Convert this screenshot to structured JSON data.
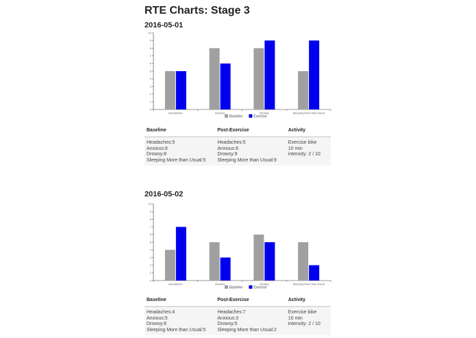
{
  "page": {
    "title": "RTE Charts: Stage 3"
  },
  "legend": {
    "baseline_label": "Baseline",
    "exercise_label": "Exercise",
    "baseline_color": "#a0a0a0",
    "exercise_color": "#0000ee"
  },
  "table_headers": {
    "baseline": "Baseline",
    "post_exercise": "Post-Exercise",
    "activity": "Activity"
  },
  "sections": [
    {
      "date": "2016-05-01",
      "baseline_lines": [
        "Headaches:5",
        "Anxious:8",
        "Drowsy:8",
        "Sleeping More than Usual:5"
      ],
      "post_lines": [
        "Headaches:5",
        "Anxious:6",
        "Drowsy:9",
        "Sleeping More than Usual:9"
      ],
      "activity_lines": [
        "Exercise bike",
        "10 min",
        "intensity: 2 / 10"
      ]
    },
    {
      "date": "2016-05-02",
      "baseline_lines": [
        "Headaches:4",
        "Anxious:5",
        "Drowsy:6",
        "Sleeping More than Usual:5"
      ],
      "post_lines": [
        "Headaches:7",
        "Anxious:3",
        "Drowsy:5",
        "Sleeping More than Usual:2"
      ],
      "activity_lines": [
        "Exercise bike",
        "10 min",
        "intensity: 2 / 10"
      ]
    }
  ],
  "chart_data": [
    {
      "type": "bar",
      "title": "2016-05-01",
      "categories": [
        "Headaches",
        "Anxious",
        "Drowsy",
        "Sleeping More than Usual"
      ],
      "series": [
        {
          "name": "Baseline",
          "color": "#a0a0a0",
          "values": [
            5,
            8,
            8,
            5
          ]
        },
        {
          "name": "Exercise",
          "color": "#0000ee",
          "values": [
            5,
            6,
            9,
            9
          ]
        }
      ],
      "ylim": [
        0,
        10
      ],
      "yticks": [
        0,
        1,
        2,
        3,
        4,
        5,
        6,
        7,
        8,
        9,
        10
      ],
      "xlabel": "",
      "ylabel": "",
      "grid": false,
      "legend_position": "bottom"
    },
    {
      "type": "bar",
      "title": "2016-05-02",
      "categories": [
        "Headaches",
        "Anxious",
        "Drowsy",
        "Sleeping More than Usual"
      ],
      "series": [
        {
          "name": "Baseline",
          "color": "#a0a0a0",
          "values": [
            4,
            5,
            6,
            5
          ]
        },
        {
          "name": "Exercise",
          "color": "#0000ee",
          "values": [
            7,
            3,
            5,
            2
          ]
        }
      ],
      "ylim": [
        0,
        10
      ],
      "yticks": [
        0,
        1,
        2,
        3,
        4,
        5,
        6,
        7,
        8,
        9,
        10
      ],
      "xlabel": "",
      "ylabel": "",
      "grid": false,
      "legend_position": "bottom"
    }
  ]
}
